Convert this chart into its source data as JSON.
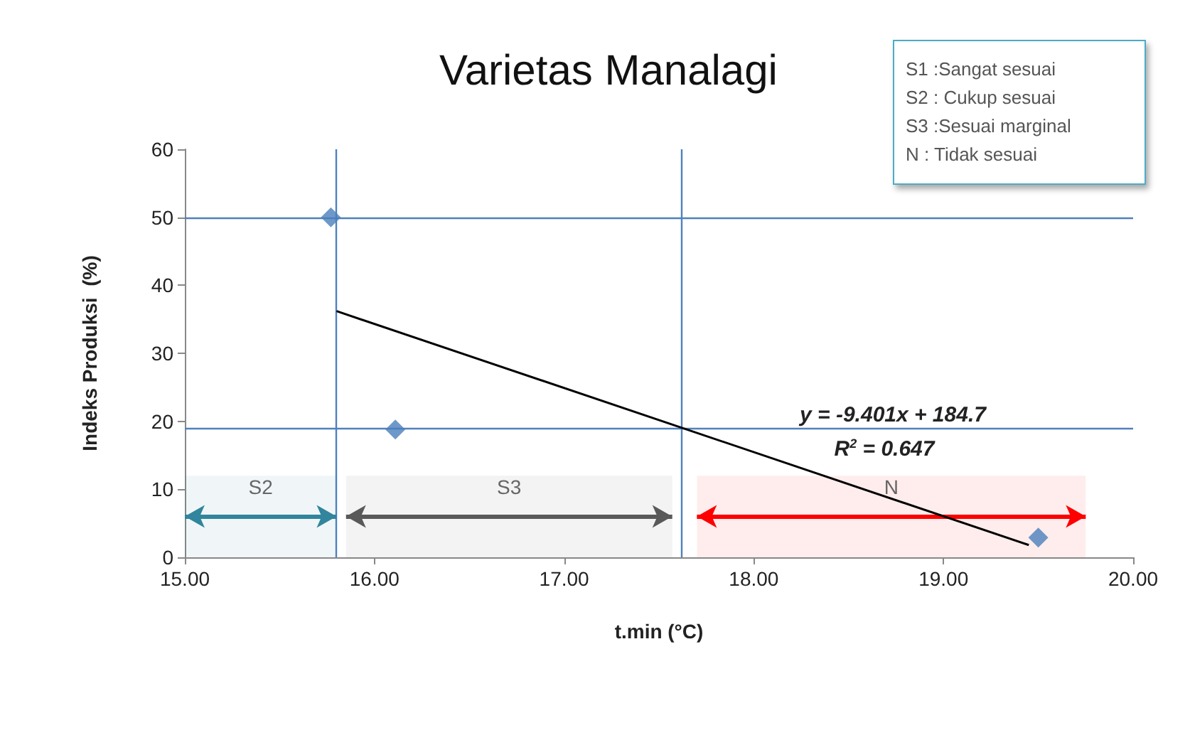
{
  "chart_data": {
    "type": "scatter",
    "title": "Varietas Manalagi",
    "xlabel": "t.min (°C)",
    "ylabel": "Indeks Produksi  (%)",
    "series": [
      {
        "color": "#4a7ebb",
        "x": [
          15.77,
          16.11,
          19.5
        ],
        "values": [
          50,
          18.8,
          2.9
        ]
      },
      {
        "type": "line",
        "marker": "none",
        "color": "#000000",
        "x": [
          15.8,
          19.45
        ],
        "values": [
          36.2,
          1.8
        ]
      }
    ],
    "marker": "diamond",
    "xlim": [
      15,
      20
    ],
    "xticks": [
      {
        "value": 15,
        "label": "15.00"
      },
      {
        "value": 16,
        "label": "16.00"
      },
      {
        "value": 17,
        "label": "17.00"
      },
      {
        "value": 18,
        "label": "18.00"
      },
      {
        "value": 19,
        "label": "19.00"
      },
      {
        "value": 20,
        "label": "20.00"
      }
    ],
    "ylim": [
      0,
      60
    ],
    "yticks": [
      0,
      10,
      20,
      30,
      40,
      50,
      60
    ],
    "grid": false,
    "ref_lines": [
      {
        "axis": "y",
        "value": 50,
        "color": "#4f81bd"
      },
      {
        "axis": "y",
        "value": 19,
        "color": "#4f81bd"
      },
      {
        "axis": "x",
        "value": 15.8,
        "color": "#4f81bd"
      },
      {
        "axis": "x",
        "value": 17.62,
        "color": "#4f81bd"
      }
    ],
    "bands": [
      {
        "axis": "x",
        "from": 15,
        "to": 15.8,
        "label": "S2",
        "color": "#31859c"
      },
      {
        "axis": "x",
        "from": 15.85,
        "to": 17.57,
        "label": "S3",
        "color": "#595959"
      },
      {
        "axis": "x",
        "from": 17.7,
        "to": 19.75,
        "label": "N",
        "color": "#ff0000"
      }
    ],
    "annotations": [
      "y = -9.401x + 184.7",
      "R$^{2}$ = 0.647",
      "S1 :Sangat sesuai",
      "S2 : Cukup sesuai",
      "S3 :Sesuai marginal",
      "N  : Tidak sesuai"
    ]
  }
}
